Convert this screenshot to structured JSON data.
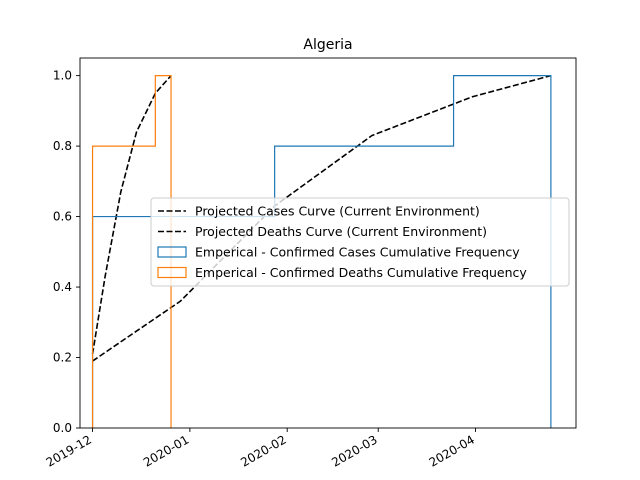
{
  "chart_data": {
    "type": "line",
    "title": "Algeria",
    "xlabel": "",
    "ylabel": "",
    "x_axis": {
      "type": "date",
      "range": [
        "2019-11-27",
        "2020-05-03"
      ],
      "ticks": [
        "2019-12-01",
        "2020-01-01",
        "2020-02-01",
        "2020-03-01",
        "2020-04-01"
      ],
      "tick_labels": [
        "2019-12",
        "2020-01",
        "2020-02",
        "2020-03",
        "2020-04"
      ]
    },
    "y_axis": {
      "range": [
        0,
        1.05
      ],
      "ticks": [
        0.0,
        0.2,
        0.4,
        0.6,
        0.8,
        1.0
      ],
      "tick_labels": [
        "0.0",
        "0.2",
        "0.4",
        "0.6",
        "0.8",
        "1.0"
      ]
    },
    "grid": false,
    "legend_position": "center-right",
    "series": [
      {
        "name": "Projected Cases Curve (Current Environment)",
        "kind": "line",
        "style": "dashed",
        "color": "#000000",
        "points": [
          [
            "2019-12-01",
            0.19
          ],
          [
            "2019-12-29",
            0.36
          ],
          [
            "2020-01-28",
            0.63
          ],
          [
            "2020-02-28",
            0.83
          ],
          [
            "2020-03-31",
            0.94
          ],
          [
            "2020-04-25",
            1.0
          ]
        ]
      },
      {
        "name": "Projected Deaths Curve (Current Environment)",
        "kind": "line",
        "style": "dashed",
        "color": "#000000",
        "points": [
          [
            "2019-12-01",
            0.21
          ],
          [
            "2019-12-05",
            0.43
          ],
          [
            "2019-12-10",
            0.67
          ],
          [
            "2019-12-15",
            0.84
          ],
          [
            "2019-12-21",
            0.95
          ],
          [
            "2019-12-26",
            1.0
          ]
        ]
      },
      {
        "name": "Emperical - Confirmed Cases Cumulative Frequency",
        "kind": "step",
        "color": "#1f77b4",
        "bins": [
          {
            "start": "2019-12-01",
            "end": "2020-01-28",
            "value": 0.6
          },
          {
            "start": "2020-01-28",
            "end": "2020-03-25",
            "value": 0.8
          },
          {
            "start": "2020-03-25",
            "end": "2020-04-25",
            "value": 1.0
          }
        ]
      },
      {
        "name": "Emperical - Confirmed Deaths Cumulative Frequency",
        "kind": "step",
        "color": "#ff7f0e",
        "bins": [
          {
            "start": "2019-12-01",
            "end": "2019-12-21",
            "value": 0.8
          },
          {
            "start": "2019-12-21",
            "end": "2019-12-26",
            "value": 1.0
          }
        ]
      }
    ]
  }
}
